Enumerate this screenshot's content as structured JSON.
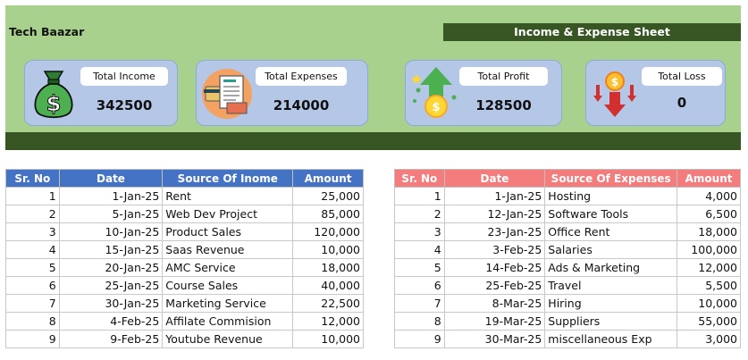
{
  "company": "Tech Baazar",
  "sheet_title": "Income & Expense Sheet",
  "cards": {
    "income": {
      "label": "Total Income",
      "value": "342500"
    },
    "expenses": {
      "label": "Total Expenses",
      "value": "214000"
    },
    "profit": {
      "label": "Total Profit",
      "value": "128500"
    },
    "loss": {
      "label": "Total Loss",
      "value": "0"
    }
  },
  "income_table": {
    "headers": [
      "Sr. No",
      "Date",
      "Source Of Inome",
      "Amount"
    ],
    "rows": [
      [
        "1",
        "1-Jan-25",
        "Rent",
        "25,000"
      ],
      [
        "2",
        "5-Jan-25",
        "Web Dev Project",
        "85,000"
      ],
      [
        "3",
        "10-Jan-25",
        "Product Sales",
        "120,000"
      ],
      [
        "4",
        "15-Jan-25",
        "Saas Revenue",
        "10,000"
      ],
      [
        "5",
        "20-Jan-25",
        "AMC Service",
        "18,000"
      ],
      [
        "6",
        "25-Jan-25",
        "Course Sales",
        "40,000"
      ],
      [
        "7",
        "30-Jan-25",
        "Marketing Service",
        "22,500"
      ],
      [
        "8",
        "4-Feb-25",
        "Affilate Commision",
        "12,000"
      ],
      [
        "9",
        "9-Feb-25",
        "Youtube Revenue",
        "10,000"
      ]
    ]
  },
  "expense_table": {
    "headers": [
      "Sr. No",
      "Date",
      "Source Of Expenses",
      "Amount"
    ],
    "rows": [
      [
        "1",
        "1-Jan-25",
        "Hosting",
        "4,000"
      ],
      [
        "2",
        "12-Jan-25",
        "Software Tools",
        "6,500"
      ],
      [
        "3",
        "23-Jan-25",
        "Office Rent",
        "18,000"
      ],
      [
        "4",
        "3-Feb-25",
        "Salaries",
        "100,000"
      ],
      [
        "5",
        "14-Feb-25",
        "Ads & Marketing",
        "12,000"
      ],
      [
        "6",
        "25-Feb-25",
        "Travel",
        "5,500"
      ],
      [
        "7",
        "8-Mar-25",
        "Hiring",
        "10,000"
      ],
      [
        "8",
        "19-Mar-25",
        "Suppliers",
        "55,000"
      ],
      [
        "9",
        "30-Mar-25",
        "miscellaneous Exp",
        "3,000"
      ]
    ]
  },
  "icons": {
    "income": "money-bag-icon",
    "expenses": "invoice-icon",
    "profit": "profit-arrow-icon",
    "loss": "loss-arrow-icon"
  }
}
